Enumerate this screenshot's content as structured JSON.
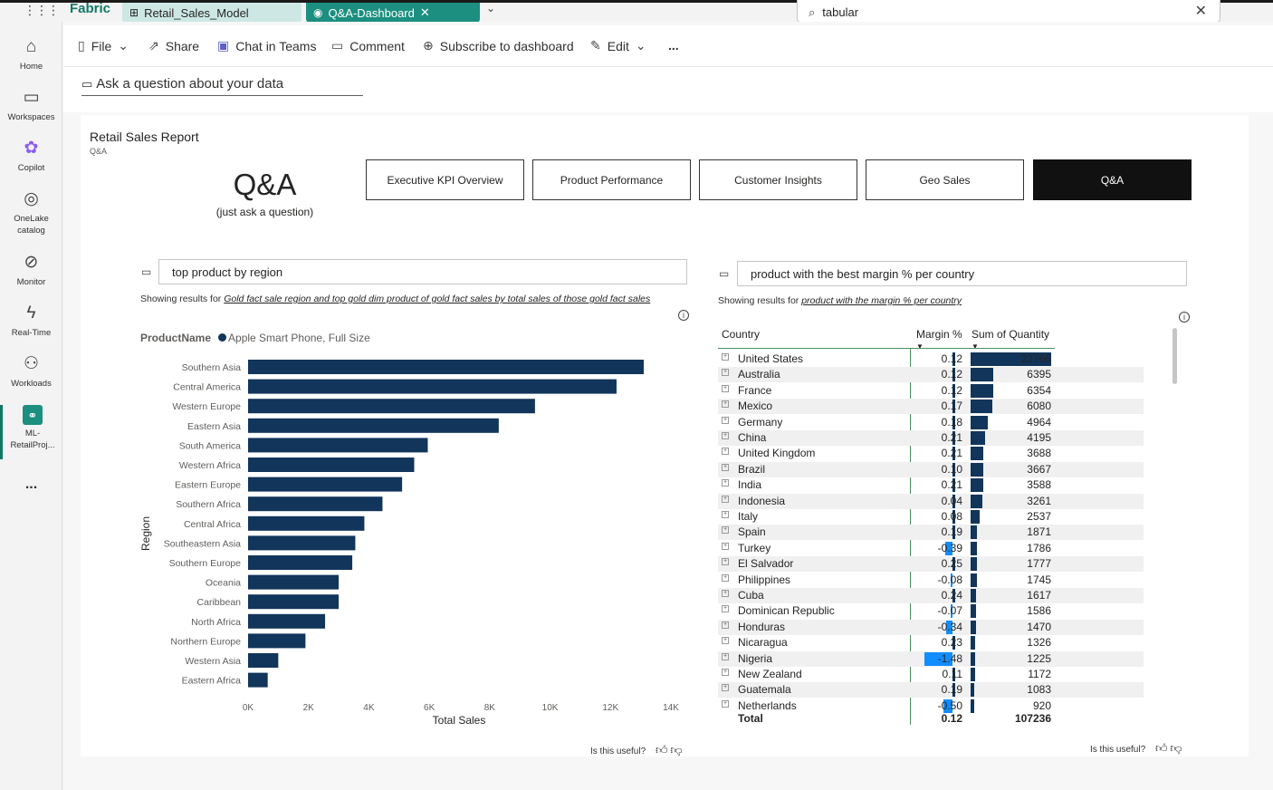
{
  "app": {
    "brand": "Fabric",
    "tabs": [
      {
        "label": "Retail_Sales_Model"
      },
      {
        "label": "Q&A-Dashboard"
      }
    ],
    "search_value": "tabular"
  },
  "leftnav": [
    {
      "label": "Home",
      "icon": "home-icon"
    },
    {
      "label": "Workspaces",
      "icon": "workspaces-icon"
    },
    {
      "label": "Copilot",
      "icon": "copilot-icon"
    },
    {
      "label": "OneLake catalog",
      "icon": "onelake-icon"
    },
    {
      "label": "Monitor",
      "icon": "monitor-icon"
    },
    {
      "label": "Real-Time",
      "icon": "realtime-icon"
    },
    {
      "label": "Workloads",
      "icon": "workloads-icon"
    },
    {
      "label": "ML-RetailProj...",
      "icon": "ml-project-icon"
    },
    {
      "label": "...",
      "icon": "more-icon"
    }
  ],
  "toolbar": {
    "file": "File",
    "share": "Share",
    "chat": "Chat in Teams",
    "comment": "Comment",
    "subscribe": "Subscribe to dashboard",
    "edit": "Edit",
    "more": "..."
  },
  "ask": {
    "placeholder": "Ask a question about your data"
  },
  "report": {
    "title": "Retail Sales Report",
    "subtitle": "Q&A",
    "qa_big": "Q&A",
    "qa_small": "(just ask a question)",
    "nav": [
      "Executive KPI Overview",
      "Product Performance",
      "Customer Insights",
      "Geo Sales",
      "Q&A"
    ],
    "selected_nav": "Q&A"
  },
  "left_visual": {
    "question": "top product by region",
    "showing_prefix": "Showing results for",
    "showing_link": "Gold fact sale region and top gold dim product of gold fact sales by total sales of those gold fact sales",
    "legend_label": "ProductName",
    "legend_item": "Apple Smart Phone, Full Size",
    "useful": "Is this useful?"
  },
  "chart_data": {
    "type": "bar",
    "orientation": "horizontal",
    "categories": [
      "Southern Asia",
      "Central America",
      "Western Europe",
      "Eastern Asia",
      "South America",
      "Western Africa",
      "Eastern Europe",
      "Southern Africa",
      "Central Africa",
      "Southeastern Asia",
      "Southern Europe",
      "Oceania",
      "Caribbean",
      "North Africa",
      "Northern Europe",
      "Western Asia",
      "Eastern Africa"
    ],
    "series": [
      {
        "name": "Apple Smart Phone, Full Size",
        "values": [
          13100,
          12200,
          9500,
          8300,
          5950,
          5500,
          5100,
          4450,
          3850,
          3550,
          3450,
          3000,
          3000,
          2550,
          1900,
          1000,
          650
        ]
      }
    ],
    "xlabel": "Total Sales",
    "ylabel": "Region",
    "xlim": [
      0,
      14000
    ],
    "xticks": [
      "0K",
      "2K",
      "4K",
      "6K",
      "8K",
      "10K",
      "12K",
      "14K"
    ],
    "color": "#12355b",
    "grid": false
  },
  "right_visual": {
    "question": "product with the best margin % per country",
    "showing_prefix": "Showing results for",
    "showing_link": "product with the margin % per country",
    "useful": "Is this useful?",
    "headers": {
      "country": "Country",
      "margin": "Margin %",
      "qty": "Sum of Quantity"
    },
    "rows": [
      {
        "country": "United States",
        "margin": "0.12",
        "qty": "22766"
      },
      {
        "country": "Australia",
        "margin": "0.12",
        "qty": "6395"
      },
      {
        "country": "France",
        "margin": "0.12",
        "qty": "6354"
      },
      {
        "country": "Mexico",
        "margin": "0.17",
        "qty": "6080"
      },
      {
        "country": "Germany",
        "margin": "0.18",
        "qty": "4964"
      },
      {
        "country": "China",
        "margin": "0.21",
        "qty": "4195"
      },
      {
        "country": "United Kingdom",
        "margin": "0.21",
        "qty": "3688"
      },
      {
        "country": "Brazil",
        "margin": "0.10",
        "qty": "3667"
      },
      {
        "country": "India",
        "margin": "0.21",
        "qty": "3588"
      },
      {
        "country": "Indonesia",
        "margin": "0.04",
        "qty": "3261"
      },
      {
        "country": "Italy",
        "margin": "0.08",
        "qty": "2537"
      },
      {
        "country": "Spain",
        "margin": "0.19",
        "qty": "1871"
      },
      {
        "country": "Turkey",
        "margin": "-0.39",
        "qty": "1786"
      },
      {
        "country": "El Salvador",
        "margin": "0.25",
        "qty": "1777"
      },
      {
        "country": "Philippines",
        "margin": "-0.08",
        "qty": "1745"
      },
      {
        "country": "Cuba",
        "margin": "0.24",
        "qty": "1617"
      },
      {
        "country": "Dominican Republic",
        "margin": "-0.07",
        "qty": "1586"
      },
      {
        "country": "Honduras",
        "margin": "-0.34",
        "qty": "1470"
      },
      {
        "country": "Nicaragua",
        "margin": "0.23",
        "qty": "1326"
      },
      {
        "country": "Nigeria",
        "margin": "-1.48",
        "qty": "1225"
      },
      {
        "country": "New Zealand",
        "margin": "0.11",
        "qty": "1172"
      },
      {
        "country": "Guatemala",
        "margin": "0.19",
        "qty": "1083"
      },
      {
        "country": "Netherlands",
        "margin": "-0.50",
        "qty": "920"
      }
    ],
    "total": {
      "label": "Total",
      "margin": "0.12",
      "qty": "107236"
    },
    "colors": {
      "positive": "#12355b",
      "negative": "#118dff",
      "qty_bar": "#12355b"
    }
  }
}
